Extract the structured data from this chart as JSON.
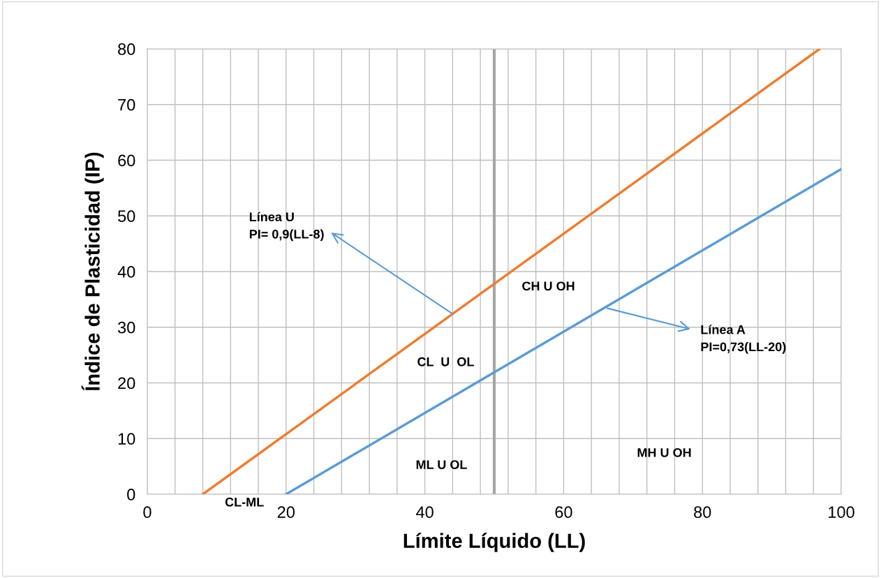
{
  "chart_data": {
    "type": "line",
    "xlabel": "Límite Líquido (LL)",
    "ylabel": "Índice de Plasticidad (IP)",
    "xlim": [
      0,
      100
    ],
    "ylim": [
      0,
      80
    ],
    "xticks": [
      0,
      {
        "value": 4,
        "label": null
      },
      {
        "value": 8,
        "label": null
      },
      {
        "value": 12,
        "label": null
      },
      {
        "value": 16,
        "label": null
      },
      20,
      {
        "value": 24,
        "label": null
      },
      {
        "value": 28,
        "label": null
      },
      {
        "value": 32,
        "label": null
      },
      {
        "value": 36,
        "label": null
      },
      40,
      {
        "value": 44,
        "label": null
      },
      {
        "value": 48,
        "label": null
      },
      {
        "value": 52,
        "label": null
      },
      {
        "value": 56,
        "label": null
      },
      60,
      {
        "value": 64,
        "label": null
      },
      {
        "value": 68,
        "label": null
      },
      {
        "value": 72,
        "label": null
      },
      {
        "value": 76,
        "label": null
      },
      80,
      {
        "value": 84,
        "label": null
      },
      {
        "value": 88,
        "label": null
      },
      {
        "value": 92,
        "label": null
      },
      {
        "value": 96,
        "label": null
      },
      100
    ],
    "yticks": [
      0,
      10,
      20,
      30,
      40,
      50,
      60,
      70,
      80
    ],
    "grid": true,
    "legend": false,
    "marker": "none",
    "line_style": "solid",
    "series": [
      {
        "color": "#ed7d31",
        "x": [
          8,
          96.9
        ],
        "values": [
          0,
          80
        ]
      },
      {
        "color": "#5b9bd5",
        "x": [
          20,
          100
        ],
        "values": [
          0,
          58.4
        ]
      }
    ],
    "ref_lines": [
      {
        "axis": "x",
        "value": 50,
        "color": "#a6a6a6"
      }
    ],
    "annotations": [
      {
        "text": "Línea U\nPI= 0,9(LL-8)",
        "x": 44,
        "y": 32.4
      },
      {
        "text": "Línea A\nPI=0,73(LL-20)",
        "x": 66.3,
        "y": 33.4
      },
      "CH U OH",
      "CL  U  OL",
      "ML U OL",
      "MH U OH",
      "CL-ML"
    ]
  }
}
